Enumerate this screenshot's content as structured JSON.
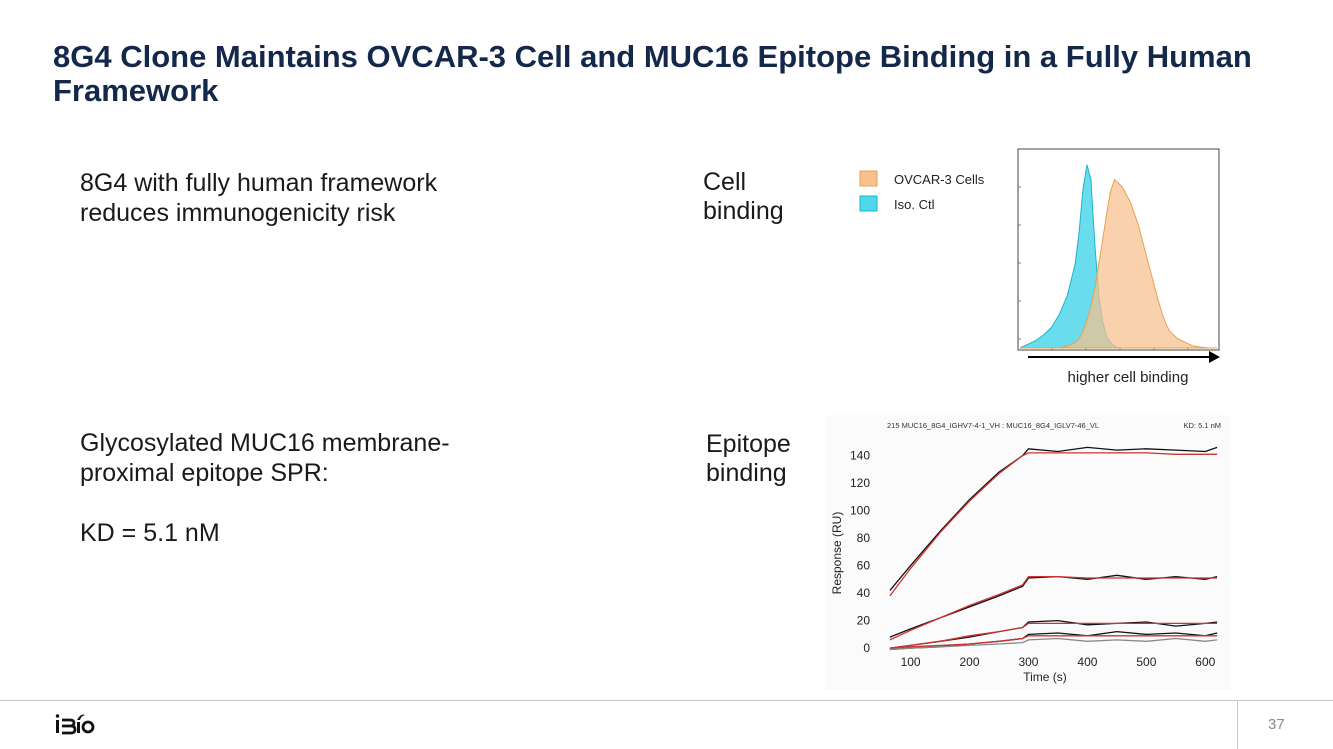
{
  "slide": {
    "title": "8G4 Clone Maintains OVCAR-3 Cell and MUC16 Epitope Binding in a Fully Human Framework",
    "point1_line1": "8G4 with fully human framework",
    "point1_line2": "reduces immunogenicity risk",
    "point2_line1": "Glycosylated MUC16 membrane-",
    "point2_line2": "proximal epitope SPR:",
    "point2_kd": "KD = 5.1 nM",
    "cell_label_line1": "Cell",
    "cell_label_line2": "binding",
    "epitope_label_line1": "Epitope",
    "epitope_label_line2": "binding",
    "page_number": "37",
    "logo_text": "iBio"
  },
  "chart_data": [
    {
      "type": "area",
      "legend": [
        {
          "name": "OVCAR-3 Cells",
          "color": "#f7c08e"
        },
        {
          "name": "Iso. Ctl",
          "color": "#4fd7ea"
        }
      ],
      "xlabel": "higher cell binding",
      "x": [
        0,
        0.04,
        0.08,
        0.12,
        0.16,
        0.2,
        0.24,
        0.28,
        0.3,
        0.32,
        0.34,
        0.36,
        0.38,
        0.4,
        0.42,
        0.44,
        0.46,
        0.48,
        0.5,
        0.52,
        0.54,
        0.56,
        0.58,
        0.6,
        0.62,
        0.64,
        0.66,
        0.68,
        0.7,
        0.72,
        0.74,
        0.76,
        0.8,
        0.84,
        0.88,
        0.92,
        0.96,
        1.0
      ],
      "series": [
        {
          "name": "Iso. Ctl",
          "color": "#4fd7ea",
          "values": [
            0,
            0.02,
            0.04,
            0.07,
            0.11,
            0.18,
            0.28,
            0.45,
            0.62,
            0.85,
            0.98,
            0.9,
            0.55,
            0.28,
            0.14,
            0.06,
            0.03,
            0.01,
            0,
            0,
            0,
            0,
            0,
            0,
            0,
            0,
            0,
            0,
            0,
            0,
            0,
            0,
            0,
            0,
            0,
            0,
            0,
            0
          ]
        },
        {
          "name": "OVCAR-3 Cells",
          "color": "#f7c08e",
          "values": [
            0,
            0,
            0,
            0,
            0,
            0,
            0.01,
            0.03,
            0.05,
            0.09,
            0.15,
            0.22,
            0.32,
            0.45,
            0.58,
            0.72,
            0.84,
            0.9,
            0.88,
            0.86,
            0.82,
            0.78,
            0.72,
            0.66,
            0.58,
            0.5,
            0.42,
            0.34,
            0.26,
            0.19,
            0.13,
            0.09,
            0.05,
            0.03,
            0.01,
            0.005,
            0,
            0
          ]
        }
      ]
    },
    {
      "type": "line",
      "title": "215 MUC16_8G4_IGHV7-4-1_VH : MUC16_8G4_IGLV7-46_VL",
      "annotation": "KD: 5.1 nM",
      "xlabel": "Time (s)",
      "ylabel": "Response (RU)",
      "xlim": [
        60,
        630
      ],
      "ylim": [
        -5,
        155
      ],
      "xticks": [
        100,
        200,
        300,
        400,
        500,
        600
      ],
      "yticks": [
        0,
        20,
        40,
        60,
        80,
        100,
        120,
        140
      ],
      "series": [
        {
          "name": "",
          "color": "#111111",
          "x": [
            65,
            100,
            150,
            200,
            250,
            290,
            300,
            350,
            400,
            450,
            500,
            550,
            600,
            620
          ],
          "values": [
            42,
            60,
            85,
            108,
            128,
            140,
            145,
            143,
            146,
            144,
            145,
            144,
            143,
            146
          ]
        },
        {
          "name": "",
          "color": "#cc3333",
          "x": [
            65,
            100,
            150,
            200,
            250,
            290,
            300,
            350,
            400,
            450,
            500,
            550,
            600,
            620
          ],
          "values": [
            38,
            58,
            84,
            107,
            127,
            140,
            142,
            142,
            142,
            142,
            142,
            141,
            141,
            141
          ]
        },
        {
          "name": "",
          "color": "#111111",
          "x": [
            65,
            100,
            150,
            200,
            250,
            290,
            300,
            350,
            400,
            450,
            500,
            550,
            600,
            620
          ],
          "values": [
            8,
            14,
            22,
            30,
            38,
            45,
            51,
            52,
            50,
            53,
            50,
            52,
            50,
            52
          ]
        },
        {
          "name": "",
          "color": "#cc3333",
          "x": [
            65,
            100,
            150,
            200,
            250,
            290,
            300,
            350,
            400,
            450,
            500,
            550,
            600,
            620
          ],
          "values": [
            6,
            13,
            22,
            31,
            39,
            46,
            52,
            52,
            51,
            51,
            51,
            51,
            51,
            51
          ]
        },
        {
          "name": "",
          "color": "#111111",
          "x": [
            65,
            100,
            150,
            200,
            250,
            290,
            300,
            350,
            400,
            450,
            500,
            550,
            600,
            620
          ],
          "values": [
            0,
            2,
            5,
            8,
            12,
            15,
            19,
            20,
            17,
            18,
            19,
            16,
            18,
            19
          ]
        },
        {
          "name": "",
          "color": "#cc3333",
          "x": [
            65,
            100,
            150,
            200,
            250,
            290,
            300,
            350,
            400,
            450,
            500,
            550,
            600,
            620
          ],
          "values": [
            0,
            2,
            5,
            9,
            12,
            15,
            18,
            18,
            18,
            18,
            18,
            18,
            18,
            18
          ]
        },
        {
          "name": "",
          "color": "#111111",
          "x": [
            65,
            100,
            150,
            200,
            250,
            290,
            300,
            350,
            400,
            450,
            500,
            550,
            600,
            620
          ],
          "values": [
            -1,
            0,
            1,
            3,
            5,
            7,
            10,
            11,
            9,
            12,
            10,
            11,
            9,
            11
          ]
        },
        {
          "name": "",
          "color": "#cc3333",
          "x": [
            65,
            100,
            150,
            200,
            250,
            290,
            300,
            350,
            400,
            450,
            500,
            550,
            600,
            620
          ],
          "values": [
            0,
            1,
            2,
            3,
            5,
            7,
            9,
            9,
            9,
            9,
            9,
            9,
            9,
            9
          ]
        },
        {
          "name": "",
          "color": "#888888",
          "x": [
            65,
            100,
            150,
            200,
            250,
            290,
            300,
            350,
            400,
            450,
            500,
            550,
            600,
            620
          ],
          "values": [
            -1,
            0,
            1,
            2,
            3,
            4,
            6,
            7,
            5,
            6,
            5,
            7,
            5,
            6
          ]
        }
      ]
    }
  ]
}
